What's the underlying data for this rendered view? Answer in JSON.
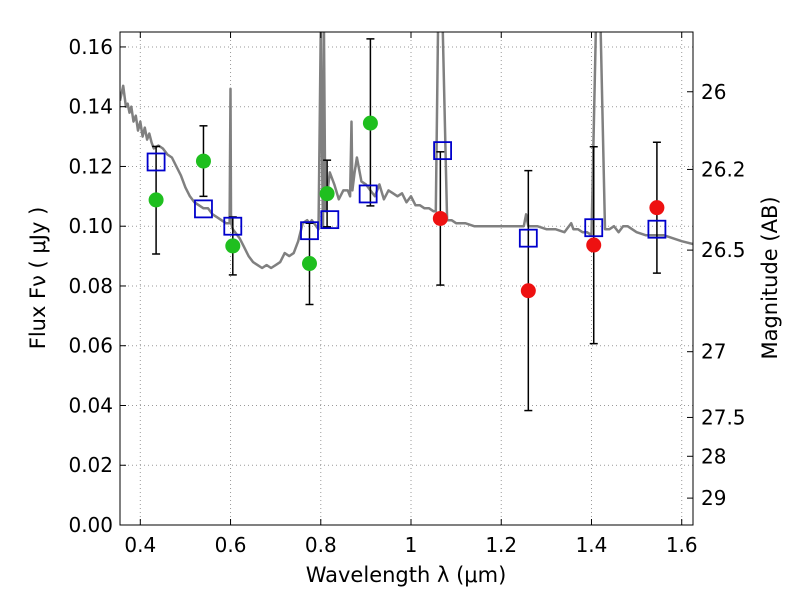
{
  "chart_data": {
    "type": "scatter",
    "xlabel": "Wavelength  λ (μm)",
    "ylabel": "Flux  Fν  ( μJy )",
    "ylabel_right": "Magnitude (AB)",
    "xlim": [
      0.355,
      1.625
    ],
    "ylim": [
      0.0,
      0.165
    ],
    "grid": true,
    "x_ticks": [
      0.4,
      0.6,
      0.8,
      1.0,
      1.2,
      1.4,
      1.6
    ],
    "x_tick_labels": [
      "0.4",
      "0.6",
      "0.8",
      "1",
      "1.2",
      "1.4",
      "1.6"
    ],
    "y_ticks": [
      0.0,
      0.02,
      0.04,
      0.06,
      0.08,
      0.1,
      0.12,
      0.14,
      0.16
    ],
    "y_tick_labels": [
      "0.00",
      "0.02",
      "0.04",
      "0.06",
      "0.08",
      "0.10",
      "0.12",
      "0.14",
      "0.16"
    ],
    "right_ticks": [
      {
        "label": "26",
        "flux": 0.145
      },
      {
        "label": "26.2",
        "flux": 0.119
      },
      {
        "label": "26.5",
        "flux": 0.092
      },
      {
        "label": "27",
        "flux": 0.058
      },
      {
        "label": "27.5",
        "flux": 0.036
      },
      {
        "label": "28",
        "flux": 0.023
      },
      {
        "label": "29",
        "flux": 0.009
      }
    ],
    "colors": {
      "model_line": "#808080",
      "green": "#1fbf1f",
      "red": "#ee1111",
      "square": "#0000cc",
      "grid": "#9a9a9a"
    },
    "series": [
      {
        "marker": "circle",
        "color": "green",
        "points": [
          {
            "x": 0.435,
            "y": 0.1088
          },
          {
            "x": 0.54,
            "y": 0.1218
          },
          {
            "x": 0.605,
            "y": 0.0934
          },
          {
            "x": 0.775,
            "y": 0.0875
          },
          {
            "x": 0.814,
            "y": 0.1109
          },
          {
            "x": 0.91,
            "y": 0.1345
          }
        ]
      },
      {
        "marker": "circle",
        "color": "red",
        "points": [
          {
            "x": 1.065,
            "y": 0.1026
          },
          {
            "x": 1.26,
            "y": 0.0784
          },
          {
            "x": 1.405,
            "y": 0.0937
          },
          {
            "x": 1.545,
            "y": 0.1062
          }
        ]
      },
      {
        "marker": "square",
        "color": "square",
        "points": [
          {
            "x": 0.435,
            "y": 0.1215
          },
          {
            "x": 0.54,
            "y": 0.1058
          },
          {
            "x": 0.605,
            "y": 0.1
          },
          {
            "x": 0.775,
            "y": 0.0985
          },
          {
            "x": 0.82,
            "y": 0.1022
          },
          {
            "x": 0.905,
            "y": 0.1108
          },
          {
            "x": 1.07,
            "y": 0.1253
          },
          {
            "x": 1.26,
            "y": 0.096
          },
          {
            "x": 1.405,
            "y": 0.0995
          },
          {
            "x": 1.545,
            "y": 0.099
          }
        ]
      }
    ],
    "error_bars": [
      {
        "x": 0.435,
        "low": 0.0907,
        "high": 0.1267
      },
      {
        "x": 0.54,
        "low": 0.11,
        "high": 0.1336
      },
      {
        "x": 0.605,
        "low": 0.0837,
        "high": 0.1031
      },
      {
        "x": 0.775,
        "low": 0.0738,
        "high": 0.101
      },
      {
        "x": 0.814,
        "low": 0.0998,
        "high": 0.1221
      },
      {
        "x": 0.91,
        "low": 0.1068,
        "high": 0.1627
      },
      {
        "x": 1.065,
        "low": 0.0803,
        "high": 0.1249
      },
      {
        "x": 1.26,
        "low": 0.0383,
        "high": 0.1186
      },
      {
        "x": 1.405,
        "low": 0.0607,
        "high": 0.1266
      },
      {
        "x": 1.545,
        "low": 0.0843,
        "high": 0.1281
      }
    ],
    "model_spectrum": {
      "x": [
        0.355,
        0.362,
        0.368,
        0.372,
        0.376,
        0.38,
        0.385,
        0.39,
        0.395,
        0.4,
        0.405,
        0.41,
        0.415,
        0.42,
        0.425,
        0.43,
        0.44,
        0.45,
        0.46,
        0.47,
        0.48,
        0.49,
        0.5,
        0.51,
        0.52,
        0.53,
        0.54,
        0.55,
        0.56,
        0.57,
        0.58,
        0.59,
        0.598,
        0.6,
        0.601,
        0.603,
        0.605,
        0.61,
        0.62,
        0.63,
        0.64,
        0.65,
        0.66,
        0.67,
        0.68,
        0.69,
        0.7,
        0.71,
        0.72,
        0.73,
        0.74,
        0.75,
        0.76,
        0.77,
        0.775,
        0.78,
        0.79,
        0.795,
        0.798,
        0.8,
        0.802,
        0.805,
        0.807,
        0.81,
        0.82,
        0.83,
        0.84,
        0.85,
        0.86,
        0.865,
        0.868,
        0.87,
        0.875,
        0.88,
        0.89,
        0.9,
        0.91,
        0.92,
        0.93,
        0.94,
        0.95,
        0.96,
        0.97,
        0.98,
        0.99,
        1.0,
        1.01,
        1.02,
        1.03,
        1.04,
        1.05,
        1.055,
        1.06,
        1.07,
        1.08,
        1.09,
        1.1,
        1.12,
        1.14,
        1.16,
        1.18,
        1.2,
        1.22,
        1.24,
        1.25,
        1.255,
        1.26,
        1.265,
        1.27,
        1.28,
        1.3,
        1.32,
        1.34,
        1.35,
        1.355,
        1.36,
        1.37,
        1.38,
        1.39,
        1.4,
        1.41,
        1.42,
        1.43,
        1.44,
        1.45,
        1.46,
        1.47,
        1.48,
        1.49,
        1.5,
        1.52,
        1.54,
        1.56,
        1.58,
        1.6,
        1.625
      ],
      "y": [
        0.142,
        0.147,
        0.14,
        0.141,
        0.138,
        0.14,
        0.135,
        0.137,
        0.132,
        0.135,
        0.13,
        0.133,
        0.129,
        0.131,
        0.128,
        0.126,
        0.127,
        0.126,
        0.124,
        0.123,
        0.12,
        0.117,
        0.113,
        0.11,
        0.108,
        0.107,
        0.106,
        0.106,
        0.104,
        0.103,
        0.102,
        0.101,
        0.101,
        0.146,
        0.104,
        0.1,
        0.099,
        0.098,
        0.096,
        0.093,
        0.09,
        0.088,
        0.087,
        0.086,
        0.087,
        0.086,
        0.087,
        0.088,
        0.091,
        0.09,
        0.091,
        0.095,
        0.101,
        0.102,
        0.101,
        0.102,
        0.1,
        0.099,
        0.14,
        0.168,
        0.13,
        0.1,
        0.168,
        0.105,
        0.118,
        0.114,
        0.109,
        0.112,
        0.112,
        0.11,
        0.135,
        0.112,
        0.118,
        0.123,
        0.115,
        0.114,
        0.112,
        0.11,
        0.114,
        0.109,
        0.112,
        0.111,
        0.11,
        0.111,
        0.108,
        0.11,
        0.107,
        0.107,
        0.106,
        0.106,
        0.105,
        0.105,
        0.168,
        0.168,
        0.102,
        0.102,
        0.101,
        0.101,
        0.1,
        0.1,
        0.1,
        0.1,
        0.1,
        0.1,
        0.1,
        0.104,
        0.1,
        0.1,
        0.1,
        0.1,
        0.099,
        0.099,
        0.098,
        0.1,
        0.101,
        0.099,
        0.099,
        0.098,
        0.098,
        0.097,
        0.168,
        0.168,
        0.099,
        0.099,
        0.1,
        0.098,
        0.1,
        0.1,
        0.099,
        0.098,
        0.097,
        0.097,
        0.097,
        0.096,
        0.095,
        0.094
      ]
    }
  }
}
